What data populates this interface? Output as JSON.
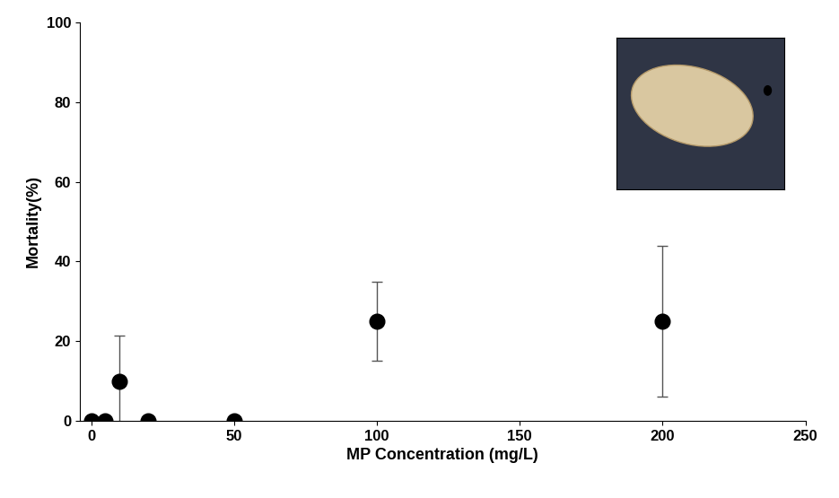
{
  "chart_data": {
    "type": "scatter",
    "x_label": "MP Concentration (mg/L)",
    "y_label": "Mortality(%)",
    "x": [
      0,
      5,
      10,
      20,
      50,
      100,
      200
    ],
    "values": [
      0,
      0,
      10,
      0,
      0,
      25,
      25
    ],
    "error": [
      0,
      0,
      11.5,
      0,
      0,
      10,
      19
    ],
    "color": "#000000",
    "marker": "circle",
    "xlim": [
      -4,
      250
    ],
    "xticks": [
      0,
      50,
      100,
      150,
      200,
      250
    ],
    "ylim": [
      0,
      100
    ],
    "yticks": [
      0,
      20,
      40,
      60,
      80,
      100
    ],
    "grid": false
  }
}
